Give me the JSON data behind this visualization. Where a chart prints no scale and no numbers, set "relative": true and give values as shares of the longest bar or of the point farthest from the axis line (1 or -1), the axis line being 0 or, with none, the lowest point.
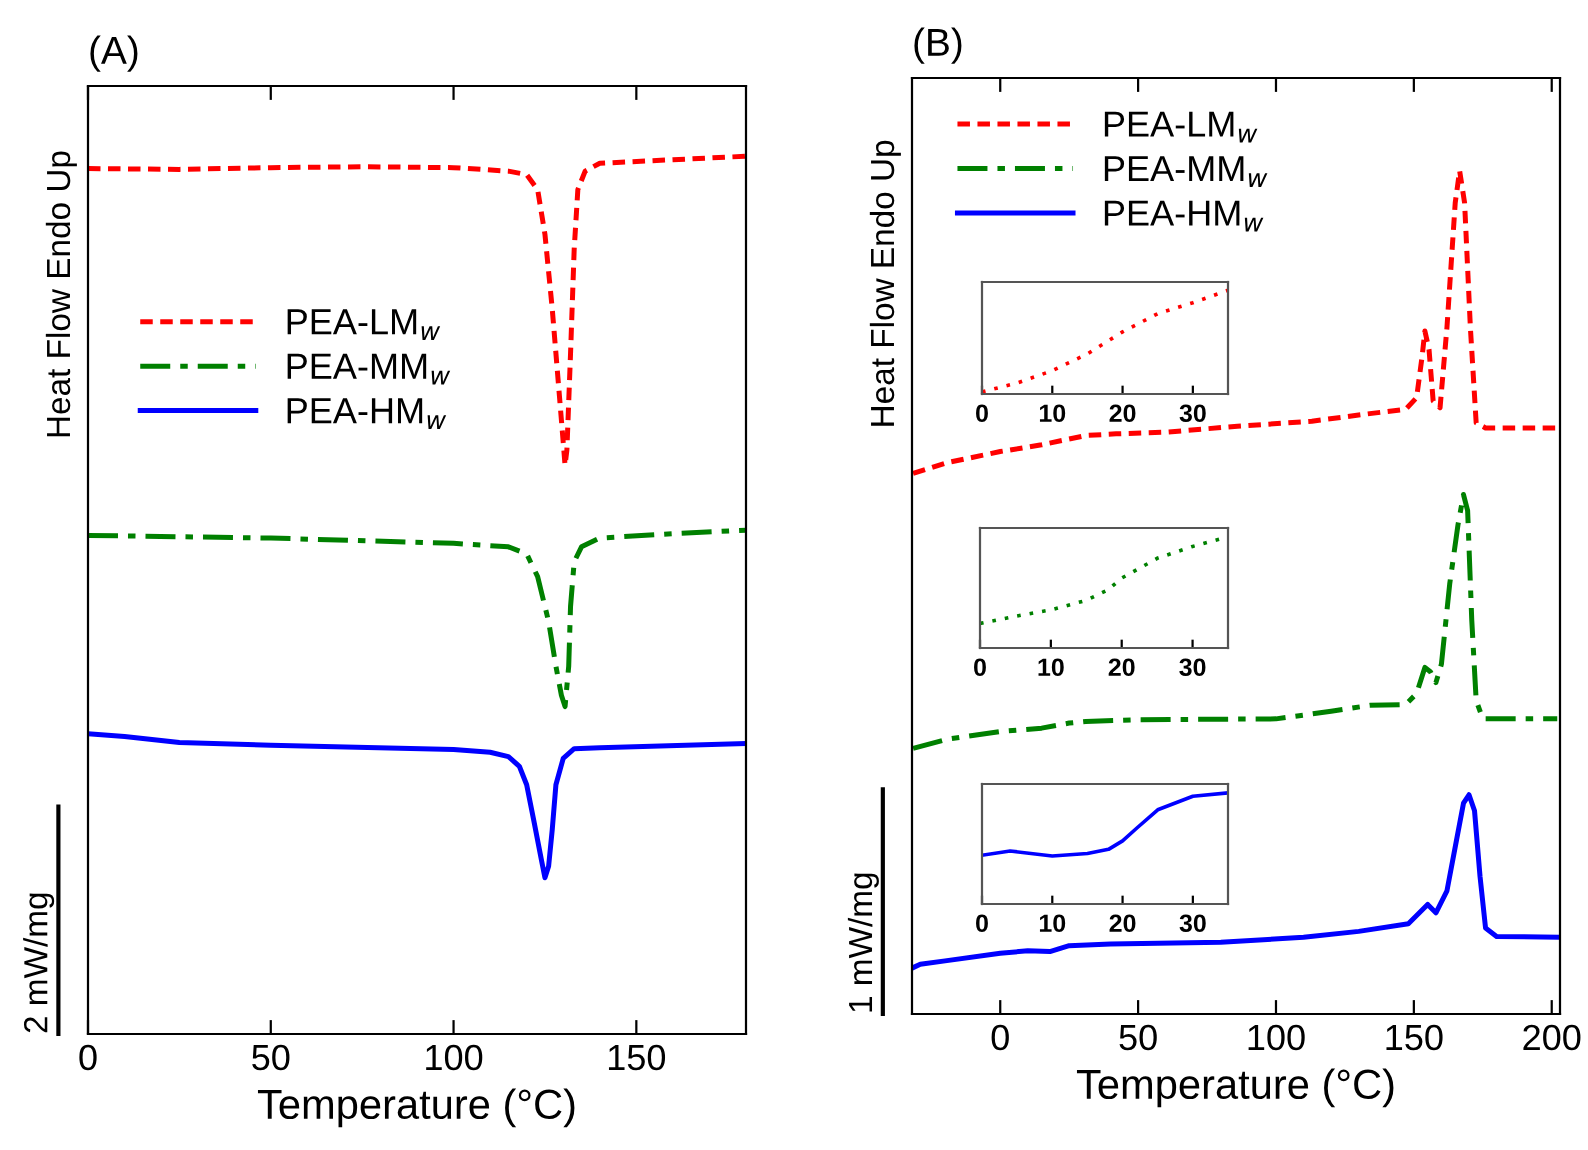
{
  "chart_data": [
    {
      "type": "line",
      "title": "(A)",
      "xlabel": "Temperature (°C)",
      "ylabel": "Heat Flow Endo Up",
      "relative": true,
      "xlim": [
        0,
        180
      ],
      "xticks": [
        0,
        50,
        100,
        150
      ],
      "legend": "top left",
      "grid": false,
      "annotations": [
        "2 mW/mg"
      ],
      "series": [
        {
          "name": "PEA-LM$_{w}$",
          "color": "#ff0000",
          "line_style": "dashed",
          "x": [
            0,
            25,
            50,
            75,
            100,
            115,
            120,
            123,
            125,
            127,
            129,
            130,
            130.5,
            131,
            132,
            133,
            134,
            136,
            140,
            160,
            180
          ],
          "values": [
            0.986,
            0.985,
            0.987,
            0.988,
            0.987,
            0.983,
            0.979,
            0.962,
            0.911,
            0.826,
            0.725,
            0.674,
            0.648,
            0.665,
            0.775,
            0.894,
            0.962,
            0.983,
            0.992,
            0.996,
            1.0
          ]
        },
        {
          "name": "PEA-MM$_{w}$",
          "color": "#008000",
          "line_style": "dashdot",
          "x": [
            0,
            50,
            100,
            115,
            120,
            123,
            126,
            128,
            129.5,
            130.5,
            131.5,
            132,
            133,
            135,
            140,
            160,
            180
          ],
          "values": [
            0.568,
            0.565,
            0.559,
            0.555,
            0.547,
            0.521,
            0.47,
            0.419,
            0.386,
            0.373,
            0.419,
            0.487,
            0.538,
            0.555,
            0.565,
            0.57,
            0.574
          ]
        },
        {
          "name": "PEA-HM$_{w}$",
          "color": "#0000ff",
          "line_style": "solid",
          "x": [
            0,
            10,
            25,
            50,
            100,
            110,
            115,
            118,
            120,
            122,
            124,
            125,
            126,
            127,
            128,
            130,
            133,
            140,
            180
          ],
          "values": [
            0.342,
            0.339,
            0.332,
            0.329,
            0.324,
            0.321,
            0.316,
            0.305,
            0.284,
            0.242,
            0.199,
            0.178,
            0.191,
            0.233,
            0.284,
            0.314,
            0.325,
            0.326,
            0.331
          ]
        }
      ]
    },
    {
      "type": "line",
      "title": "(B)",
      "xlabel": "Temperature (°C)",
      "ylabel": "Heat Flow Endo Up",
      "relative": true,
      "xlim": [
        -32,
        203
      ],
      "xticks": [
        0,
        50,
        100,
        150,
        200
      ],
      "legend": "top left",
      "grid": false,
      "annotations": [
        "1 mW/mg"
      ],
      "series": [
        {
          "name": "PEA-LM$_{w}$",
          "color": "#ff0000",
          "line_style": "dashed",
          "x": [
            -31.6,
            -19,
            0,
            15,
            31,
            42,
            60,
            86,
            113,
            134,
            147,
            151,
            153,
            154,
            155.5,
            157,
            159.5,
            162,
            165,
            166.6,
            168.4,
            170.5,
            172.6,
            176,
            202
          ],
          "values": [
            0.641,
            0.654,
            0.667,
            0.675,
            0.686,
            0.688,
            0.69,
            0.697,
            0.703,
            0.712,
            0.717,
            0.731,
            0.78,
            0.81,
            0.788,
            0.727,
            0.719,
            0.814,
            0.962,
            1.0,
            0.962,
            0.814,
            0.701,
            0.695,
            0.695
          ]
        },
        {
          "name": "PEA-MM$_{w}$",
          "color": "#008000",
          "line_style": "dashdot",
          "x": [
            -31.6,
            -19,
            0,
            15,
            25,
            31,
            50,
            100,
            120,
            134,
            147,
            151,
            154,
            156,
            158,
            160,
            163,
            166,
            168,
            169.5,
            171,
            172.6,
            175,
            202
          ],
          "values": [
            0.315,
            0.326,
            0.335,
            0.339,
            0.345,
            0.347,
            0.349,
            0.35,
            0.359,
            0.366,
            0.367,
            0.38,
            0.411,
            0.406,
            0.393,
            0.415,
            0.51,
            0.58,
            0.616,
            0.597,
            0.467,
            0.372,
            0.35,
            0.35
          ]
        },
        {
          "name": "PEA-HM$_{w}$",
          "color": "#0000ff",
          "line_style": "solid",
          "x": [
            -31.6,
            -29,
            -20,
            0,
            10,
            18,
            25,
            40,
            80,
            110,
            130,
            148,
            152,
            155,
            158,
            162,
            165,
            168,
            170,
            172,
            174,
            176,
            180,
            202
          ],
          "values": [
            0.055,
            0.059,
            0.063,
            0.072,
            0.075,
            0.074,
            0.081,
            0.083,
            0.085,
            0.091,
            0.098,
            0.107,
            0.12,
            0.13,
            0.12,
            0.146,
            0.198,
            0.25,
            0.26,
            0.241,
            0.163,
            0.102,
            0.092,
            0.091
          ]
        }
      ]
    },
    {
      "type": "line",
      "relative": true,
      "xlim": [
        0,
        35
      ],
      "xticks": [
        0,
        10,
        20,
        30
      ],
      "line_style": "dotted",
      "series": [
        {
          "color": "#ff0000",
          "x": [
            0,
            5,
            10,
            15,
            20,
            25,
            30,
            35
          ],
          "values": [
            0.02,
            0.106,
            0.225,
            0.387,
            0.599,
            0.775,
            0.88,
            1.0
          ]
        }
      ]
    },
    {
      "type": "line",
      "relative": true,
      "xlim": [
        0,
        35
      ],
      "xticks": [
        0,
        10,
        20,
        30
      ],
      "line_style": "dotted",
      "series": [
        {
          "color": "#008000",
          "x": [
            0,
            5,
            10,
            15,
            18,
            20,
            25,
            30,
            35
          ],
          "values": [
            0.221,
            0.286,
            0.343,
            0.429,
            0.521,
            0.629,
            0.807,
            0.914,
            1.0
          ]
        }
      ]
    },
    {
      "type": "line",
      "relative": true,
      "xlim": [
        0,
        35
      ],
      "xticks": [
        0,
        10,
        20,
        30
      ],
      "line_style": "solid",
      "series": [
        {
          "color": "#0000ff",
          "x": [
            0,
            4,
            10,
            15,
            18,
            20,
            22,
            25,
            30,
            35
          ],
          "values": [
            0.439,
            0.477,
            0.432,
            0.455,
            0.492,
            0.568,
            0.682,
            0.848,
            0.97,
            1.0
          ]
        }
      ]
    }
  ]
}
